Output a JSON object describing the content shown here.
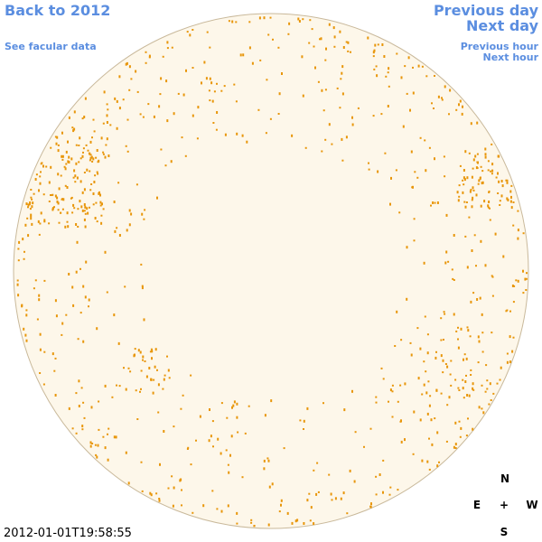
{
  "nav": {
    "back": "Back to 2012",
    "facular": "See facular data",
    "prev_day": "Previous day",
    "next_day": "Next day",
    "prev_hour": "Previous hour",
    "next_hour": "Next hour"
  },
  "timestamp": "2012-01-01T19:58:55",
  "compass": {
    "north": "N",
    "east": "E",
    "center": "+",
    "west": "W",
    "south": "S"
  }
}
